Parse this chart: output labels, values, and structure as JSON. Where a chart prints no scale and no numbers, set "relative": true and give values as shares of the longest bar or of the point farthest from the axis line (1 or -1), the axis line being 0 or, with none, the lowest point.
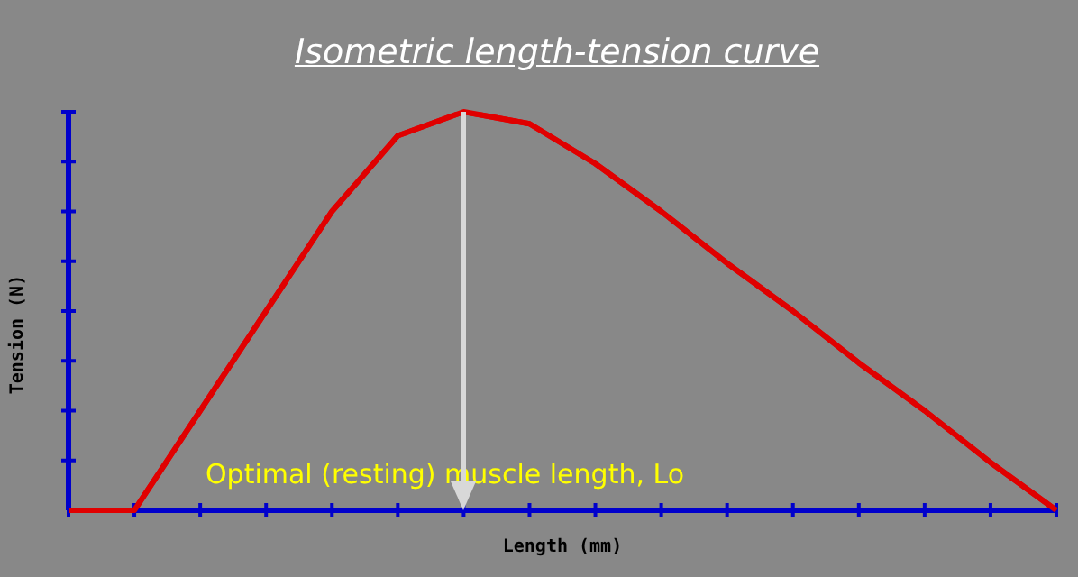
{
  "chart_data": {
    "type": "line",
    "title": "Isometric length-tension curve",
    "xlabel": "Length (mm)",
    "ylabel": "Tension (N)",
    "relative": true,
    "categories": [
      null,
      null,
      null,
      null,
      null,
      null,
      null,
      null,
      null,
      null,
      null,
      null,
      null,
      null,
      null,
      null
    ],
    "series": [
      {
        "color": "#e00000",
        "values": [
          0,
          0,
          0.25,
          0.5,
          0.75,
          0.94,
          1,
          0.97,
          0.87,
          0.75,
          0.62,
          0.5,
          0.37,
          0.25,
          0.12,
          0
        ]
      }
    ],
    "annotations": [
      "Optimal (resting) muscle length, Lo"
    ],
    "marker": "none",
    "legend": false
  }
}
